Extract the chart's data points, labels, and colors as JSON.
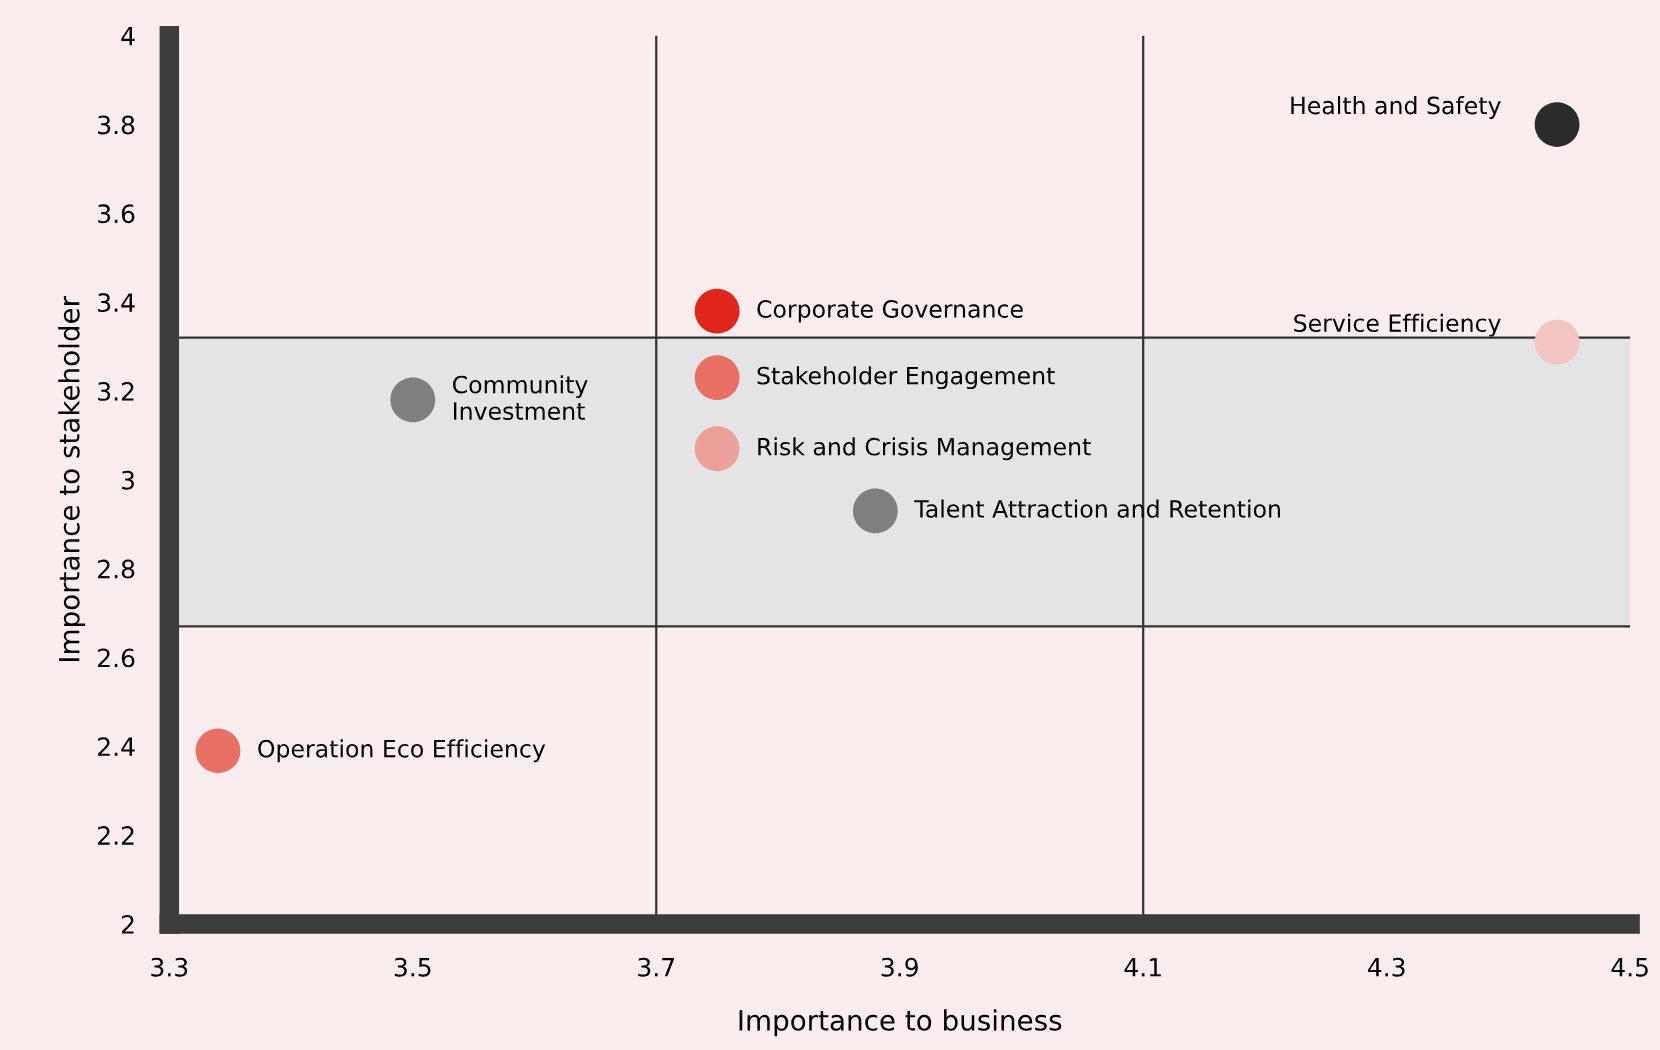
{
  "chart_data": {
    "type": "scatter",
    "xlabel": "Importance to business",
    "ylabel": "Importance to stakeholder",
    "x": [
      4.44,
      4.44,
      3.75,
      3.75,
      3.75,
      3.5,
      3.88,
      3.34
    ],
    "values": [
      3.8,
      3.31,
      3.38,
      3.23,
      3.07,
      3.18,
      2.93,
      2.39
    ],
    "colors": [
      "#2b2b2b",
      "#f2c4c4",
      "#e0251b",
      "#e87066",
      "#eba09a",
      "#7f7f7f",
      "#7f7f7f",
      "#e87066"
    ],
    "annotations": [
      {
        "text": "Health and Safety",
        "x": 4.44,
        "y": 3.8
      },
      {
        "text": "Service Efficiency",
        "x": 4.44,
        "y": 3.31
      },
      {
        "text": "Corporate Governance",
        "x": 3.75,
        "y": 3.38
      },
      {
        "text": "Stakeholder Engagement",
        "x": 3.75,
        "y": 3.23
      },
      {
        "text": "Risk and Crisis Management",
        "x": 3.75,
        "y": 3.07
      },
      {
        "text": "Community\nInvestment",
        "x": 3.5,
        "y": 3.18
      },
      {
        "text": "Talent Attraction and Retention",
        "x": 3.88,
        "y": 2.93
      },
      {
        "text": "Operation Eco Efficiency",
        "x": 3.34,
        "y": 2.39
      }
    ],
    "xlim": [
      3.3,
      4.5
    ],
    "xticks": [
      3.3,
      3.5,
      3.7,
      3.9,
      4.1,
      4.3,
      4.5
    ],
    "ylim": [
      2,
      4
    ],
    "yticks": [
      2,
      2.2,
      2.4,
      2.6,
      2.8,
      3,
      3.2,
      3.4,
      3.6,
      3.8,
      4
    ],
    "ref_lines": [
      {
        "axis": "x",
        "value": 3.7,
        "color": "#333333"
      },
      {
        "axis": "x",
        "value": 4.1,
        "color": "#333333"
      },
      {
        "axis": "y",
        "value": 3.32,
        "color": "#333333"
      },
      {
        "axis": "y",
        "value": 2.67,
        "color": "#333333"
      }
    ],
    "bands": [
      {
        "axis": "y",
        "from": 2.67,
        "to": 3.32,
        "color": "#e4e4e4"
      }
    ],
    "marker": "circle",
    "grid": false,
    "legend": false
  }
}
